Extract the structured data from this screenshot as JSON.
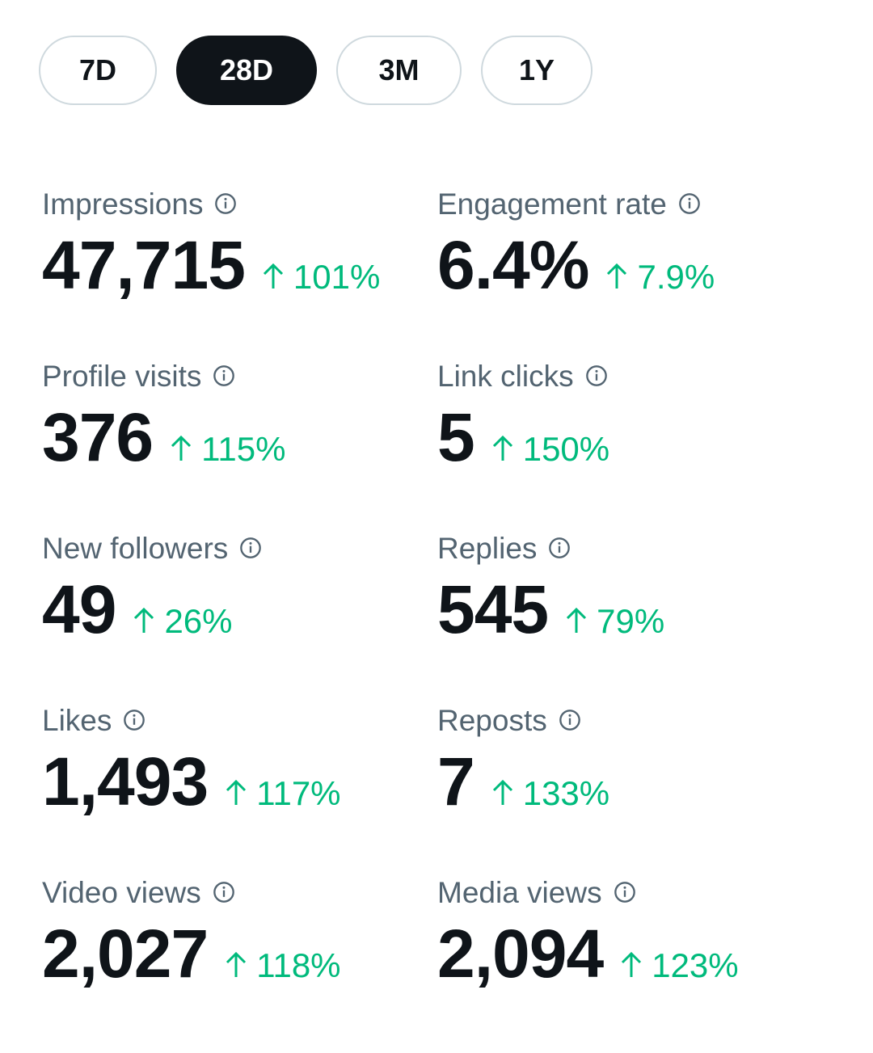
{
  "range_tabs": [
    {
      "label": "7D",
      "active": false
    },
    {
      "label": "28D",
      "active": true
    },
    {
      "label": "3M",
      "active": false
    },
    {
      "label": "1Y",
      "active": false
    }
  ],
  "colors": {
    "positive_change": "#00ba7c",
    "label_text": "#536471",
    "primary_text": "#0f1419",
    "active_tab_bg": "#0f1419",
    "tab_border": "#cfd9de"
  },
  "metrics": [
    {
      "label": "Impressions",
      "value": "47,715",
      "change": "101%",
      "direction": "up",
      "icon": "info-icon"
    },
    {
      "label": "Engagement rate",
      "value": "6.4%",
      "change": "7.9%",
      "direction": "up",
      "icon": "info-icon"
    },
    {
      "label": "Profile visits",
      "value": "376",
      "change": "115%",
      "direction": "up",
      "icon": "info-icon"
    },
    {
      "label": "Link clicks",
      "value": "5",
      "change": "150%",
      "direction": "up",
      "icon": "info-icon"
    },
    {
      "label": "New followers",
      "value": "49",
      "change": "26%",
      "direction": "up",
      "icon": "info-icon"
    },
    {
      "label": "Replies",
      "value": "545",
      "change": "79%",
      "direction": "up",
      "icon": "info-icon"
    },
    {
      "label": "Likes",
      "value": "1,493",
      "change": "117%",
      "direction": "up",
      "icon": "info-icon"
    },
    {
      "label": "Reposts",
      "value": "7",
      "change": "133%",
      "direction": "up",
      "icon": "info-icon"
    },
    {
      "label": "Video views",
      "value": "2,027",
      "change": "118%",
      "direction": "up",
      "icon": "info-icon"
    },
    {
      "label": "Media views",
      "value": "2,094",
      "change": "123%",
      "direction": "up",
      "icon": "info-icon"
    }
  ]
}
